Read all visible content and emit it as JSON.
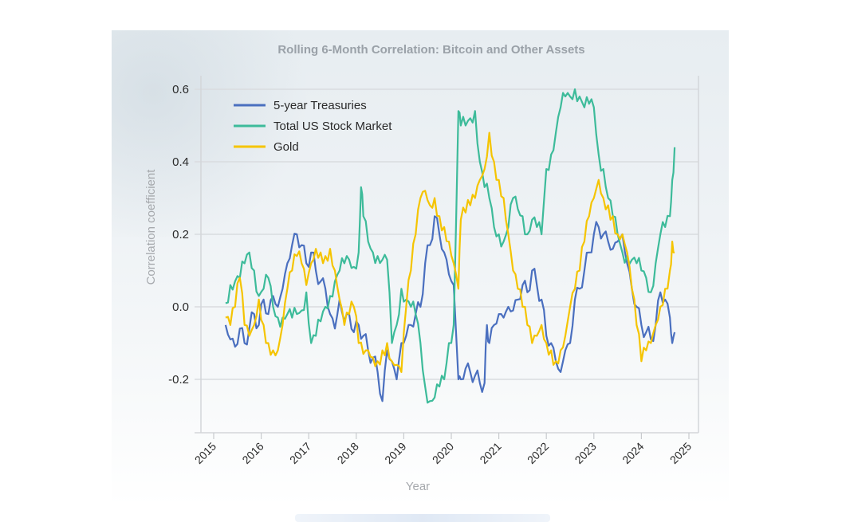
{
  "chart_data": {
    "type": "line",
    "title": "Rolling 6-Month Correlation: Bitcoin and Other Assets",
    "xlabel": "Year",
    "ylabel": "Correlation coefficient",
    "xlim": [
      2015,
      2025
    ],
    "ylim": [
      -0.35,
      0.62
    ],
    "x_ticks": [
      "2015",
      "2016",
      "2017",
      "2018",
      "2019",
      "2020",
      "2021",
      "2022",
      "2023",
      "2024",
      "2025"
    ],
    "y_ticks": [
      "-0.2",
      "0.0",
      "0.2",
      "0.4",
      "0.6"
    ],
    "y_tick_values": [
      -0.2,
      0.0,
      0.2,
      0.4,
      0.6
    ],
    "grid": true,
    "legend_position": "top-left",
    "series": [
      {
        "name": "5-year Treasuries",
        "color": "#4a6fbf",
        "x": [
          2015.25,
          2015.35,
          2015.45,
          2015.55,
          2015.65,
          2015.75,
          2015.85,
          2015.95,
          2016.05,
          2016.15,
          2016.25,
          2016.35,
          2016.45,
          2016.55,
          2016.65,
          2016.75,
          2016.85,
          2016.95,
          2017.05,
          2017.15,
          2017.25,
          2017.35,
          2017.45,
          2017.55,
          2017.65,
          2017.75,
          2017.85,
          2017.95,
          2018.05,
          2018.15,
          2018.25,
          2018.35,
          2018.45,
          2018.55,
          2018.65,
          2018.75,
          2018.85,
          2018.95,
          2019.05,
          2019.15,
          2019.25,
          2019.35,
          2019.45,
          2019.55,
          2019.65,
          2019.75,
          2019.85,
          2019.95,
          2020.05,
          2020.15,
          2020.2,
          2020.3,
          2020.4,
          2020.5,
          2020.6,
          2020.7,
          2020.75,
          2020.8,
          2020.9,
          2021.0,
          2021.1,
          2021.2,
          2021.3,
          2021.4,
          2021.5,
          2021.6,
          2021.7,
          2021.8,
          2021.9,
          2022.0,
          2022.1,
          2022.2,
          2022.3,
          2022.4,
          2022.5,
          2022.6,
          2022.7,
          2022.8,
          2022.9,
          2023.0,
          2023.1,
          2023.2,
          2023.3,
          2023.4,
          2023.5,
          2023.6,
          2023.7,
          2023.8,
          2023.9,
          2024.0,
          2024.1,
          2024.2,
          2024.3,
          2024.4,
          2024.5,
          2024.6,
          2024.65,
          2024.7
        ],
        "values": [
          -0.05,
          -0.09,
          -0.11,
          -0.06,
          -0.1,
          -0.06,
          -0.02,
          -0.05,
          0.02,
          -0.02,
          0.03,
          0.0,
          0.05,
          0.12,
          0.17,
          0.2,
          0.17,
          0.12,
          0.15,
          0.1,
          0.07,
          0.05,
          -0.02,
          -0.06,
          0.02,
          -0.04,
          -0.02,
          -0.07,
          -0.05,
          -0.08,
          -0.12,
          -0.14,
          -0.18,
          -0.26,
          -0.12,
          -0.15,
          -0.2,
          -0.1,
          -0.08,
          -0.05,
          -0.02,
          0.0,
          0.12,
          0.17,
          0.25,
          0.2,
          0.15,
          0.09,
          0.06,
          -0.2,
          -0.2,
          -0.17,
          -0.18,
          -0.19,
          -0.21,
          -0.21,
          -0.05,
          -0.1,
          -0.05,
          -0.02,
          -0.03,
          0.0,
          -0.01,
          0.02,
          0.06,
          0.04,
          0.1,
          0.06,
          0.02,
          -0.08,
          -0.1,
          -0.15,
          -0.18,
          -0.12,
          -0.1,
          0.02,
          0.05,
          0.1,
          0.15,
          0.2,
          0.22,
          0.2,
          0.18,
          0.16,
          0.18,
          0.2,
          0.12,
          0.05,
          0.0,
          -0.05,
          -0.07,
          -0.09,
          -0.05,
          0.04,
          0.02,
          -0.03,
          -0.1,
          -0.07
        ]
      },
      {
        "name": "Total US Stock Market",
        "color": "#3dbb9a",
        "x": [
          2015.25,
          2015.35,
          2015.45,
          2015.55,
          2015.65,
          2015.75,
          2015.85,
          2015.95,
          2016.05,
          2016.15,
          2016.25,
          2016.35,
          2016.45,
          2016.55,
          2016.65,
          2016.75,
          2016.85,
          2016.95,
          2017.05,
          2017.15,
          2017.25,
          2017.35,
          2017.45,
          2017.55,
          2017.65,
          2017.75,
          2017.85,
          2017.95,
          2018.05,
          2018.1,
          2018.15,
          2018.25,
          2018.35,
          2018.45,
          2018.55,
          2018.65,
          2018.75,
          2018.85,
          2018.95,
          2019.05,
          2019.15,
          2019.25,
          2019.35,
          2019.45,
          2019.55,
          2019.65,
          2019.75,
          2019.85,
          2019.95,
          2020.05,
          2020.15,
          2020.2,
          2020.3,
          2020.4,
          2020.5,
          2020.6,
          2020.7,
          2020.8,
          2020.9,
          2021.0,
          2021.1,
          2021.2,
          2021.3,
          2021.4,
          2021.5,
          2021.6,
          2021.7,
          2021.8,
          2021.9,
          2022.0,
          2022.1,
          2022.2,
          2022.3,
          2022.4,
          2022.5,
          2022.6,
          2022.7,
          2022.8,
          2022.9,
          2023.0,
          2023.1,
          2023.2,
          2023.3,
          2023.4,
          2023.5,
          2023.6,
          2023.7,
          2023.8,
          2023.9,
          2024.0,
          2024.1,
          2024.2,
          2024.3,
          2024.4,
          2024.5,
          2024.6,
          2024.65,
          2024.7
        ],
        "values": [
          0.01,
          0.06,
          0.07,
          0.08,
          0.12,
          0.15,
          0.1,
          0.03,
          0.05,
          0.08,
          0.0,
          -0.03,
          -0.03,
          -0.02,
          -0.03,
          -0.02,
          -0.01,
          0.04,
          -0.1,
          -0.08,
          -0.04,
          0.0,
          0.03,
          0.07,
          0.1,
          0.12,
          0.13,
          0.11,
          0.15,
          0.33,
          0.25,
          0.18,
          0.15,
          0.14,
          0.13,
          0.13,
          -0.1,
          -0.05,
          0.05,
          0.02,
          0.0,
          -0.02,
          -0.1,
          -0.22,
          -0.26,
          -0.25,
          -0.22,
          -0.2,
          -0.1,
          -0.05,
          0.54,
          0.5,
          0.5,
          0.52,
          0.54,
          0.4,
          0.33,
          0.3,
          0.22,
          0.2,
          0.18,
          0.22,
          0.3,
          0.27,
          0.25,
          0.2,
          0.24,
          0.22,
          0.2,
          0.38,
          0.42,
          0.48,
          0.55,
          0.58,
          0.58,
          0.6,
          0.58,
          0.55,
          0.56,
          0.55,
          0.42,
          0.38,
          0.3,
          0.25,
          0.2,
          0.15,
          0.14,
          0.13,
          0.12,
          0.1,
          0.08,
          0.04,
          0.12,
          0.2,
          0.22,
          0.25,
          0.35,
          0.44
        ]
      },
      {
        "name": "Gold",
        "color": "#f5c400",
        "x": [
          2015.25,
          2015.35,
          2015.45,
          2015.55,
          2015.65,
          2015.75,
          2015.85,
          2015.95,
          2016.05,
          2016.15,
          2016.25,
          2016.35,
          2016.45,
          2016.55,
          2016.65,
          2016.75,
          2016.85,
          2016.95,
          2017.05,
          2017.15,
          2017.25,
          2017.35,
          2017.45,
          2017.55,
          2017.65,
          2017.75,
          2017.85,
          2017.95,
          2018.05,
          2018.15,
          2018.25,
          2018.35,
          2018.45,
          2018.55,
          2018.65,
          2018.75,
          2018.85,
          2018.95,
          2019.05,
          2019.15,
          2019.25,
          2019.35,
          2019.45,
          2019.55,
          2019.65,
          2019.75,
          2019.85,
          2019.95,
          2020.05,
          2020.15,
          2020.2,
          2020.3,
          2020.4,
          2020.5,
          2020.6,
          2020.7,
          2020.8,
          2020.9,
          2021.0,
          2021.1,
          2021.2,
          2021.3,
          2021.4,
          2021.5,
          2021.6,
          2021.7,
          2021.8,
          2021.9,
          2022.0,
          2022.1,
          2022.2,
          2022.3,
          2022.4,
          2022.5,
          2022.6,
          2022.7,
          2022.8,
          2022.9,
          2023.0,
          2023.1,
          2023.2,
          2023.3,
          2023.4,
          2023.5,
          2023.6,
          2023.7,
          2023.8,
          2023.9,
          2024.0,
          2024.1,
          2024.2,
          2024.3,
          2024.4,
          2024.5,
          2024.6,
          2024.65,
          2024.7
        ],
        "values": [
          -0.03,
          -0.05,
          0.0,
          0.08,
          -0.05,
          -0.08,
          -0.05,
          0.02,
          -0.05,
          -0.1,
          -0.12,
          -0.12,
          -0.05,
          0.05,
          0.1,
          0.14,
          0.12,
          0.06,
          0.12,
          0.16,
          0.15,
          0.14,
          0.16,
          0.1,
          0.02,
          -0.05,
          -0.02,
          0.0,
          -0.1,
          -0.13,
          -0.12,
          -0.14,
          -0.15,
          -0.12,
          -0.1,
          -0.15,
          -0.16,
          -0.18,
          0.0,
          0.1,
          0.2,
          0.3,
          0.32,
          0.28,
          0.3,
          0.25,
          0.22,
          0.18,
          0.12,
          0.05,
          0.24,
          0.26,
          0.28,
          0.3,
          0.35,
          0.38,
          0.48,
          0.4,
          0.35,
          0.3,
          0.2,
          0.1,
          0.05,
          0.0,
          -0.05,
          -0.1,
          -0.08,
          -0.05,
          -0.1,
          -0.12,
          -0.15,
          -0.12,
          -0.08,
          0.0,
          0.05,
          0.1,
          0.18,
          0.25,
          0.3,
          0.35,
          0.3,
          0.28,
          0.25,
          0.2,
          0.2,
          0.15,
          0.05,
          -0.05,
          -0.15,
          -0.12,
          -0.1,
          -0.05,
          0.0,
          0.05,
          0.1,
          0.18,
          0.15
        ]
      }
    ]
  }
}
